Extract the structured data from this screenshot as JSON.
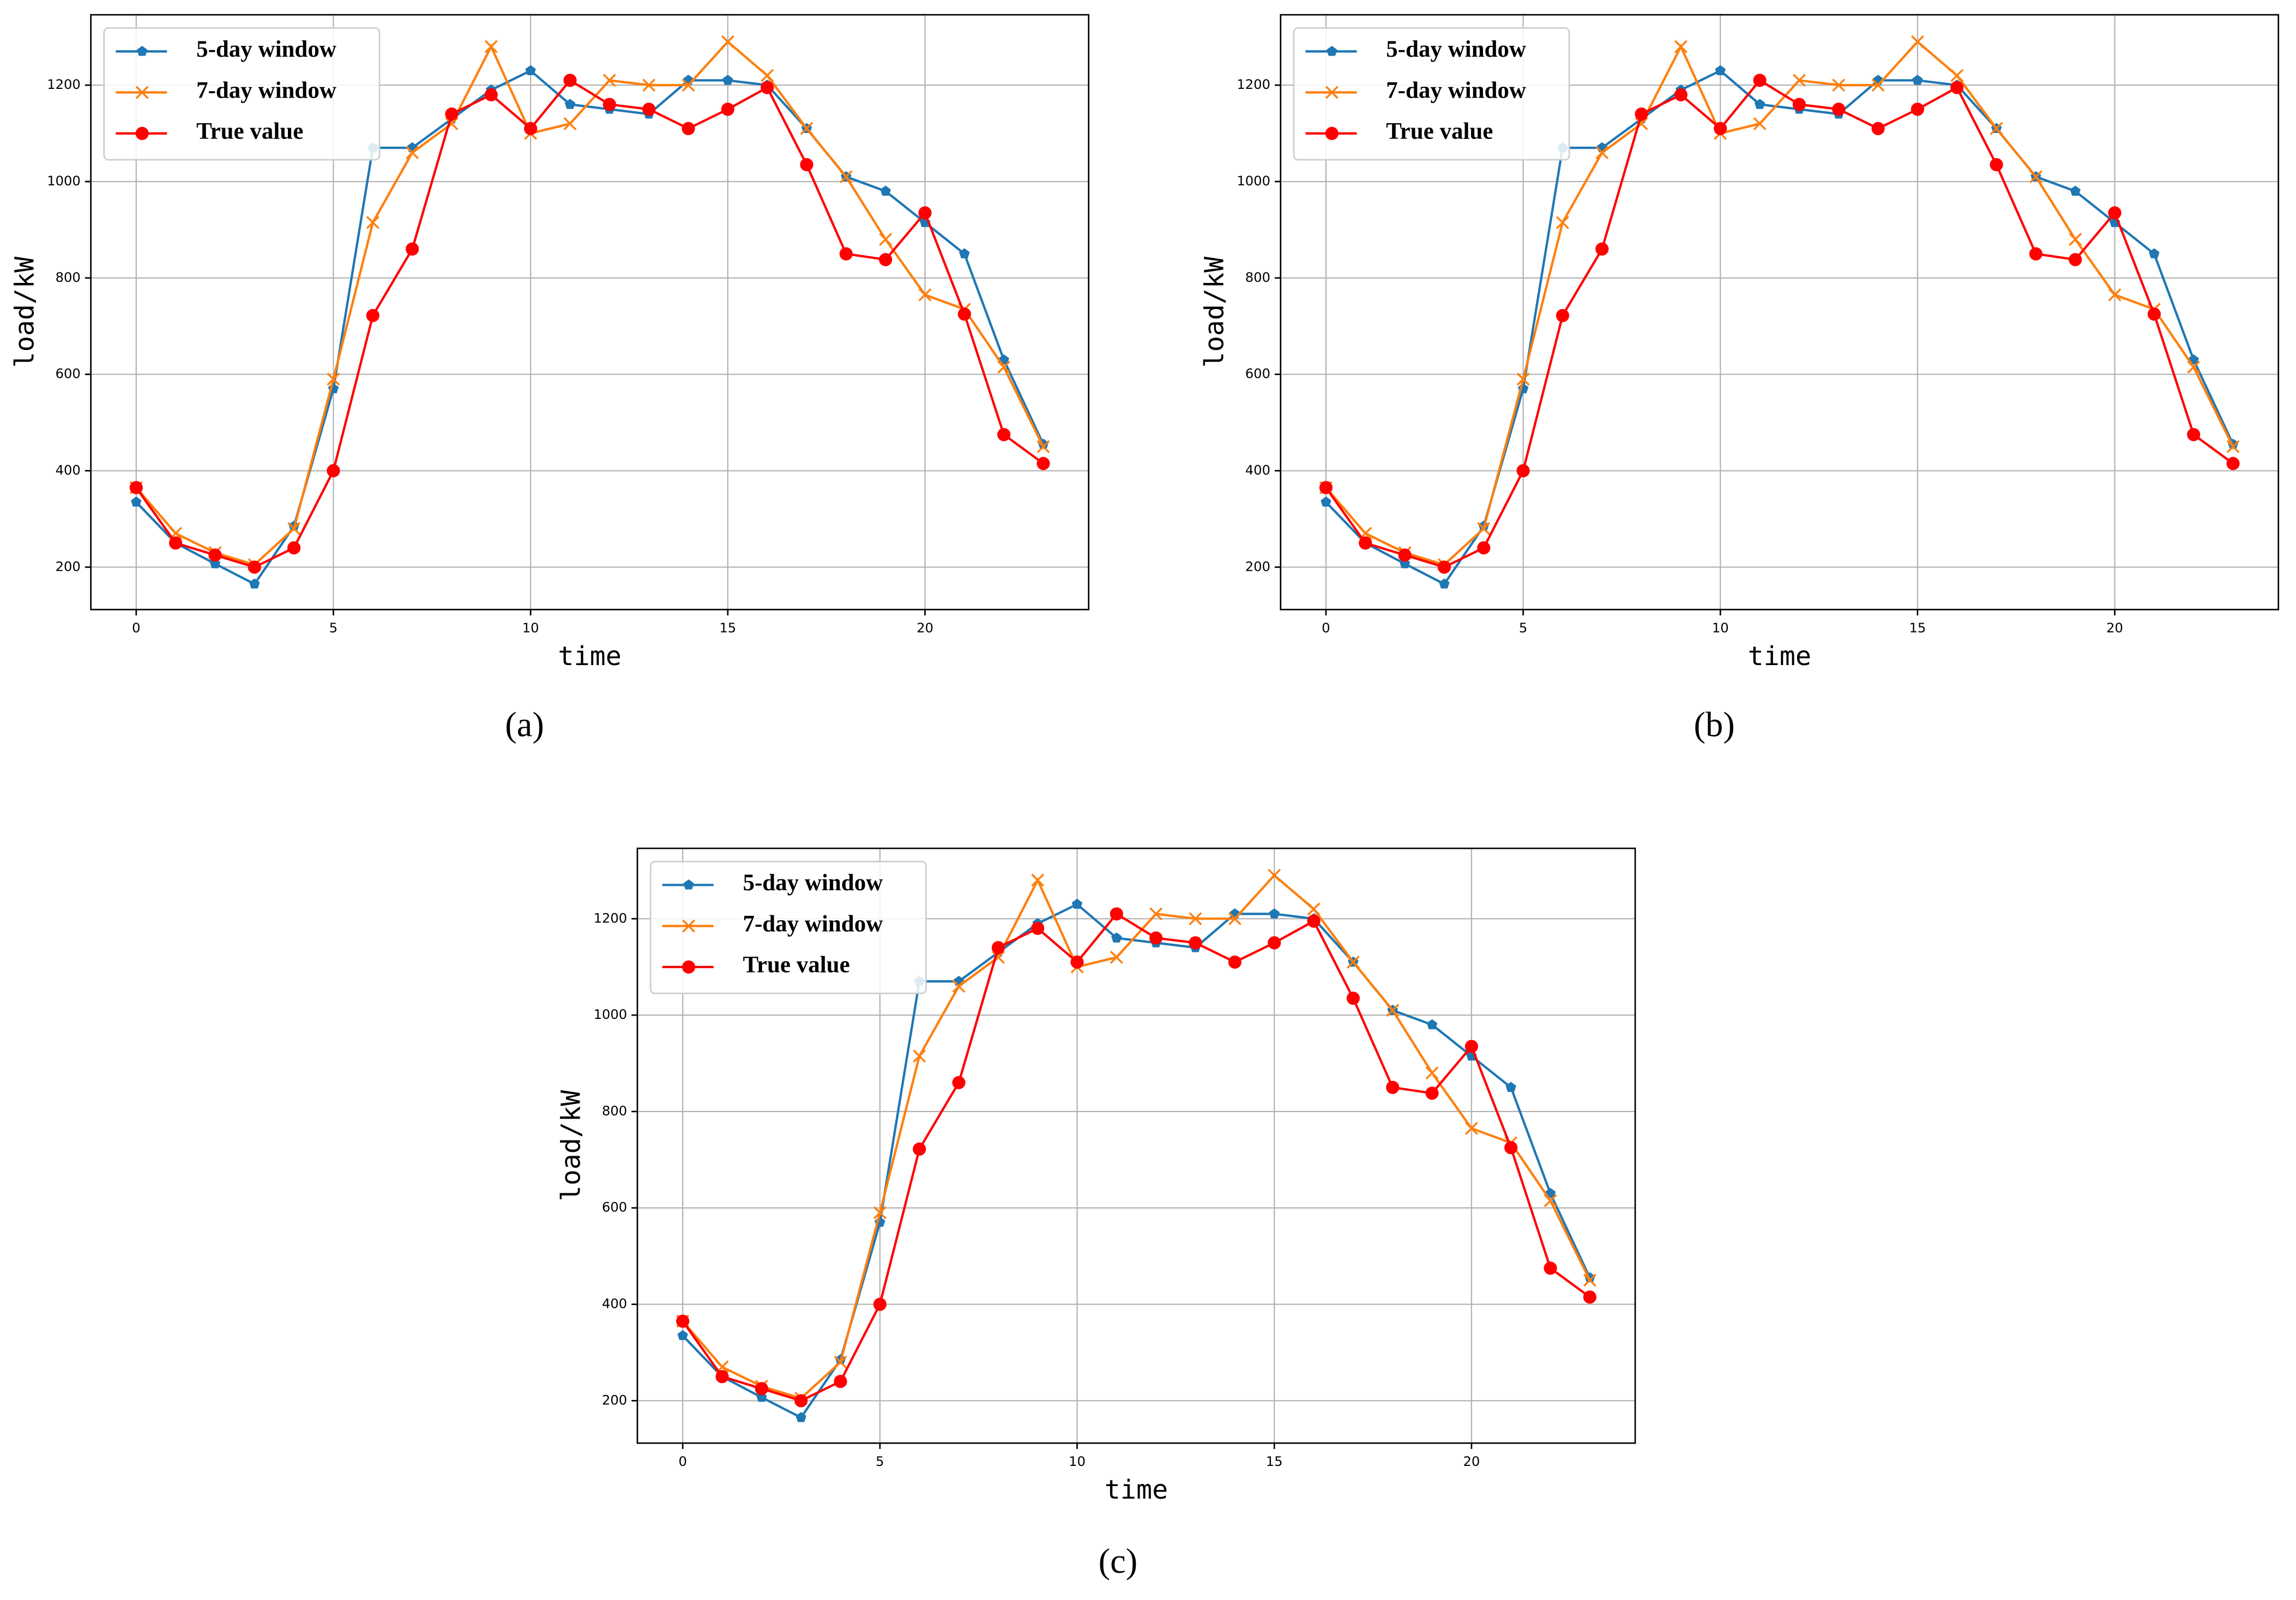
{
  "chart_data": [
    {
      "type": "line",
      "caption": "(a)",
      "xlabel": "time",
      "ylabel": "load/kW",
      "xlim": [
        -1.15,
        24.15
      ],
      "ylim": [
        112,
        1346
      ],
      "xticks": [
        0,
        5,
        10,
        15,
        20
      ],
      "yticks": [
        200,
        400,
        600,
        800,
        1000,
        1200
      ],
      "grid": true,
      "legend": "upper left",
      "x": [
        0,
        1,
        2,
        3,
        4,
        5,
        6,
        7,
        8,
        9,
        10,
        11,
        12,
        13,
        14,
        15,
        16,
        17,
        18,
        19,
        20,
        21,
        22,
        23
      ],
      "series": [
        {
          "name": "5-day window",
          "color": "#1f77b4",
          "marker": "pentagon",
          "values": [
            335,
            250,
            207,
            165,
            285,
            570,
            1070,
            1070,
            1130,
            1190,
            1230,
            1160,
            1150,
            1140,
            1210,
            1210,
            1200,
            1110,
            1010,
            980,
            915,
            850,
            630,
            455
          ]
        },
        {
          "name": "7-day window",
          "color": "#ff7f0e",
          "marker": "x",
          "values": [
            365,
            270,
            230,
            205,
            280,
            590,
            915,
            1060,
            1120,
            1280,
            1100,
            1120,
            1210,
            1200,
            1200,
            1290,
            1220,
            1110,
            1010,
            880,
            765,
            735,
            615,
            450
          ]
        },
        {
          "name": "True value",
          "color": "#ff0000",
          "marker": "circle",
          "values": [
            365,
            250,
            225,
            200,
            240,
            400,
            722,
            860,
            1140,
            1180,
            1110,
            1210,
            1160,
            1150,
            1110,
            1150,
            1195,
            1035,
            850,
            838,
            935,
            725,
            475,
            415
          ]
        }
      ]
    },
    {
      "type": "line",
      "caption": "(b)",
      "xlabel": "time",
      "ylabel": "load/kW",
      "xlim": [
        -1.15,
        24.15
      ],
      "ylim": [
        112,
        1346
      ],
      "xticks": [
        0,
        5,
        10,
        15,
        20
      ],
      "yticks": [
        200,
        400,
        600,
        800,
        1000,
        1200
      ],
      "grid": true,
      "legend": "upper left",
      "x": [
        0,
        1,
        2,
        3,
        4,
        5,
        6,
        7,
        8,
        9,
        10,
        11,
        12,
        13,
        14,
        15,
        16,
        17,
        18,
        19,
        20,
        21,
        22,
        23
      ],
      "series": [
        {
          "name": "5-day window",
          "color": "#1f77b4",
          "marker": "pentagon",
          "values": [
            335,
            250,
            207,
            165,
            285,
            570,
            1070,
            1070,
            1130,
            1190,
            1230,
            1160,
            1150,
            1140,
            1210,
            1210,
            1200,
            1110,
            1010,
            980,
            915,
            850,
            630,
            455
          ]
        },
        {
          "name": "7-day window",
          "color": "#ff7f0e",
          "marker": "x",
          "values": [
            365,
            270,
            230,
            205,
            280,
            590,
            915,
            1060,
            1120,
            1280,
            1100,
            1120,
            1210,
            1200,
            1200,
            1290,
            1220,
            1110,
            1010,
            880,
            765,
            735,
            615,
            450
          ]
        },
        {
          "name": "True value",
          "color": "#ff0000",
          "marker": "circle",
          "values": [
            365,
            250,
            225,
            200,
            240,
            400,
            722,
            860,
            1140,
            1180,
            1110,
            1210,
            1160,
            1150,
            1110,
            1150,
            1195,
            1035,
            850,
            838,
            935,
            725,
            475,
            415
          ]
        }
      ]
    },
    {
      "type": "line",
      "caption": "(c)",
      "xlabel": "time",
      "ylabel": "load/kW",
      "xlim": [
        -1.15,
        24.15
      ],
      "ylim": [
        112,
        1346
      ],
      "xticks": [
        0,
        5,
        10,
        15,
        20
      ],
      "yticks": [
        200,
        400,
        600,
        800,
        1000,
        1200
      ],
      "grid": true,
      "legend": "upper left",
      "x": [
        0,
        1,
        2,
        3,
        4,
        5,
        6,
        7,
        8,
        9,
        10,
        11,
        12,
        13,
        14,
        15,
        16,
        17,
        18,
        19,
        20,
        21,
        22,
        23
      ],
      "series": [
        {
          "name": "5-day window",
          "color": "#1f77b4",
          "marker": "pentagon",
          "values": [
            335,
            250,
            207,
            165,
            285,
            570,
            1070,
            1070,
            1130,
            1190,
            1230,
            1160,
            1150,
            1140,
            1210,
            1210,
            1200,
            1110,
            1010,
            980,
            915,
            850,
            630,
            455
          ]
        },
        {
          "name": "7-day window",
          "color": "#ff7f0e",
          "marker": "x",
          "values": [
            365,
            270,
            230,
            205,
            280,
            590,
            915,
            1060,
            1120,
            1280,
            1100,
            1120,
            1210,
            1200,
            1200,
            1290,
            1220,
            1110,
            1010,
            880,
            765,
            735,
            615,
            450
          ]
        },
        {
          "name": "True value",
          "color": "#ff0000",
          "marker": "circle",
          "values": [
            365,
            250,
            225,
            200,
            240,
            400,
            722,
            860,
            1140,
            1180,
            1110,
            1210,
            1160,
            1150,
            1110,
            1150,
            1195,
            1035,
            850,
            838,
            935,
            725,
            475,
            415
          ]
        }
      ]
    }
  ]
}
